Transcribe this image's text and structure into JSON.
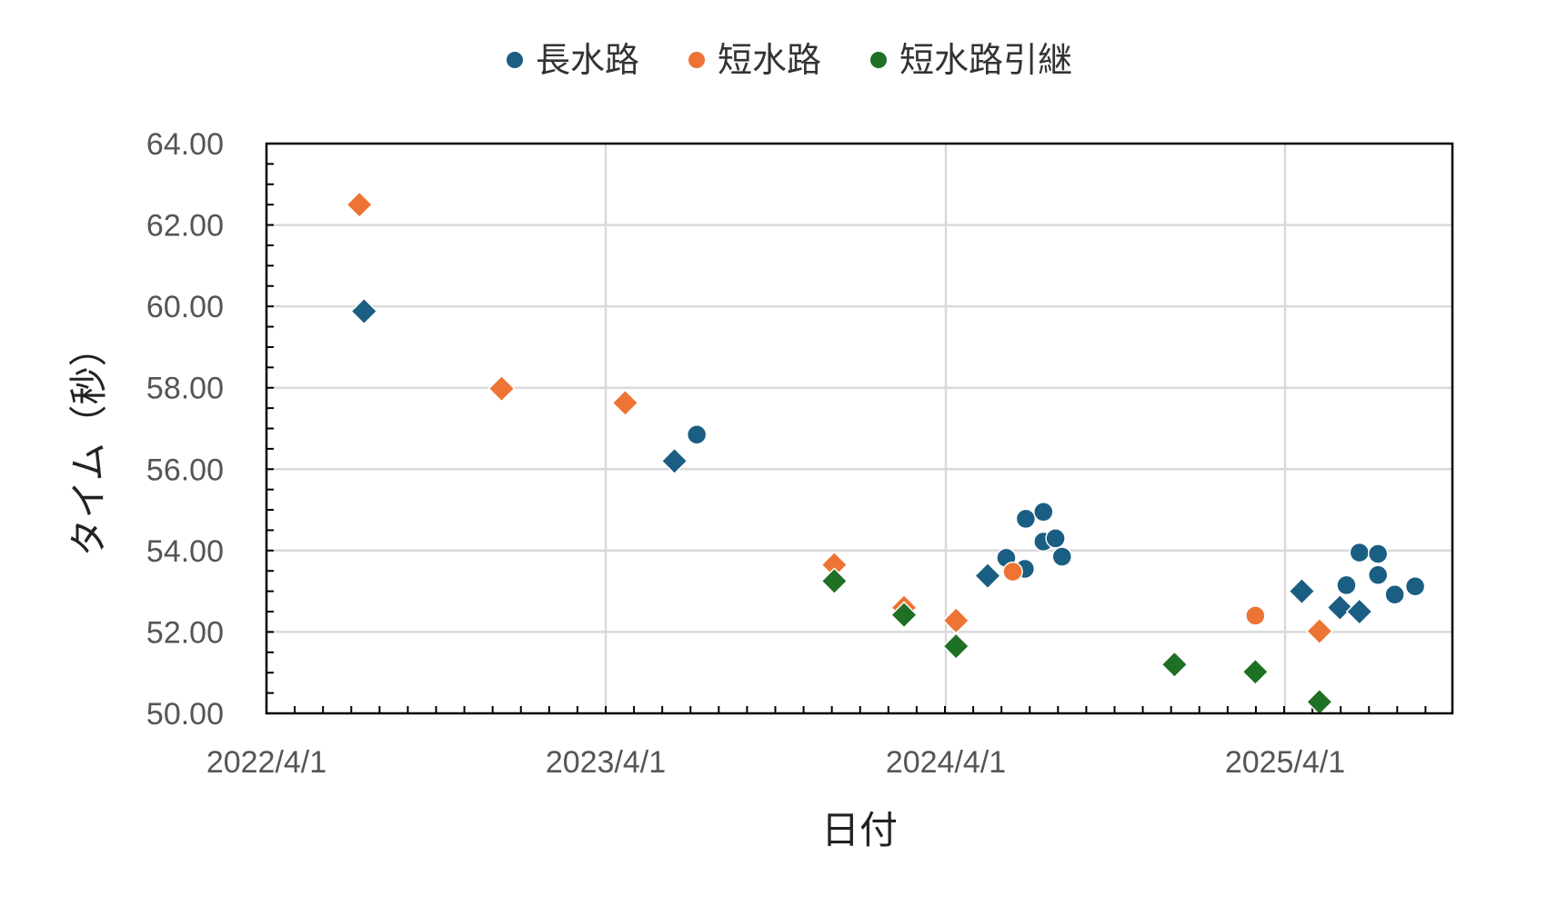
{
  "chart_data": {
    "type": "scatter",
    "title": "",
    "xlabel": "日付",
    "ylabel": "タイム（秒）",
    "xlim": [
      "2022-04-01",
      "2025-08-01"
    ],
    "ylim": [
      50,
      64
    ],
    "x_ticks": [
      "2022-04-01",
      "2023-04-01",
      "2024-04-01",
      "2025-04-01"
    ],
    "x_tick_labels": [
      "2022/4/1",
      "2023/4/1",
      "2024/4/1",
      "2025/4/1"
    ],
    "y_ticks": [
      50,
      52,
      54,
      56,
      58,
      60,
      62,
      64
    ],
    "y_tick_labels": [
      "50.00",
      "52.00",
      "54.00",
      "56.00",
      "58.00",
      "60.00",
      "62.00",
      "64.00"
    ],
    "grid": true,
    "legend_position": "top",
    "series": [
      {
        "name": "長水路",
        "color": "#1b5e83",
        "points": [
          {
            "x": "2022-07-15",
            "y": 59.88,
            "marker": "diamond"
          },
          {
            "x": "2023-06-14",
            "y": 56.2,
            "marker": "diamond"
          },
          {
            "x": "2023-07-08",
            "y": 56.85,
            "marker": "circle"
          },
          {
            "x": "2024-05-16",
            "y": 53.38,
            "marker": "diamond"
          },
          {
            "x": "2024-06-05",
            "y": 53.82,
            "marker": "circle"
          },
          {
            "x": "2024-06-25",
            "y": 53.55,
            "marker": "circle"
          },
          {
            "x": "2024-06-26",
            "y": 54.78,
            "marker": "circle"
          },
          {
            "x": "2024-07-15",
            "y": 54.95,
            "marker": "circle"
          },
          {
            "x": "2024-07-15",
            "y": 54.22,
            "marker": "circle"
          },
          {
            "x": "2024-07-28",
            "y": 54.3,
            "marker": "circle"
          },
          {
            "x": "2024-08-04",
            "y": 53.85,
            "marker": "circle"
          },
          {
            "x": "2025-04-19",
            "y": 53.0,
            "marker": "diamond"
          },
          {
            "x": "2025-05-30",
            "y": 52.6,
            "marker": "diamond"
          },
          {
            "x": "2025-06-06",
            "y": 53.15,
            "marker": "circle"
          },
          {
            "x": "2025-06-20",
            "y": 52.5,
            "marker": "diamond"
          },
          {
            "x": "2025-06-20",
            "y": 53.95,
            "marker": "circle"
          },
          {
            "x": "2025-07-10",
            "y": 53.92,
            "marker": "circle"
          },
          {
            "x": "2025-07-10",
            "y": 53.4,
            "marker": "circle"
          },
          {
            "x": "2025-07-28",
            "y": 52.92,
            "marker": "circle"
          },
          {
            "x": "2025-08-19",
            "y": 53.12,
            "marker": "circle"
          }
        ]
      },
      {
        "name": "短水路",
        "color": "#ed7434",
        "points": [
          {
            "x": "2022-07-10",
            "y": 62.5,
            "marker": "diamond"
          },
          {
            "x": "2022-12-10",
            "y": 57.98,
            "marker": "diamond"
          },
          {
            "x": "2023-04-22",
            "y": 57.63,
            "marker": "diamond"
          },
          {
            "x": "2023-12-03",
            "y": 53.65,
            "marker": "diamond"
          },
          {
            "x": "2024-02-16",
            "y": 52.6,
            "marker": "diamond"
          },
          {
            "x": "2024-04-12",
            "y": 52.28,
            "marker": "diamond"
          },
          {
            "x": "2024-06-12",
            "y": 53.48,
            "marker": "circle"
          },
          {
            "x": "2025-02-28",
            "y": 52.4,
            "marker": "circle"
          },
          {
            "x": "2025-05-08",
            "y": 52.02,
            "marker": "diamond"
          }
        ]
      },
      {
        "name": "短水路引継",
        "color": "#1e7024",
        "points": [
          {
            "x": "2023-12-03",
            "y": 53.25,
            "marker": "diamond"
          },
          {
            "x": "2024-02-16",
            "y": 52.42,
            "marker": "diamond"
          },
          {
            "x": "2024-04-12",
            "y": 51.65,
            "marker": "diamond"
          },
          {
            "x": "2024-12-03",
            "y": 51.2,
            "marker": "diamond"
          },
          {
            "x": "2025-02-28",
            "y": 51.02,
            "marker": "diamond"
          },
          {
            "x": "2025-05-08",
            "y": 50.28,
            "marker": "diamond"
          }
        ]
      }
    ]
  }
}
